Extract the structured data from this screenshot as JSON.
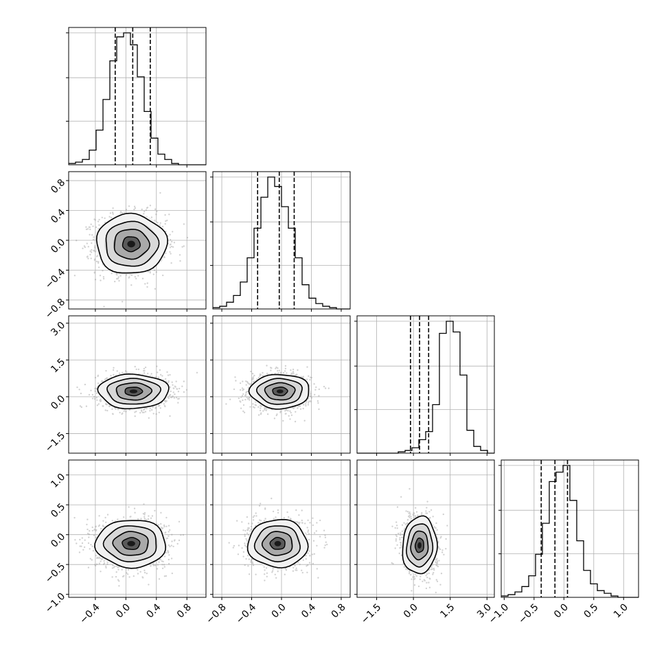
{
  "chart_data": {
    "type": "corner",
    "parameters": 4,
    "grid": true,
    "quantile_lines": "dashed",
    "colors": {
      "line": "#000000",
      "grid": "#b0b0b0",
      "points": "#9a9a9a"
    },
    "axes": [
      {
        "range": [
          -0.75,
          1.05
        ],
        "ticks": [
          -0.4,
          0.0,
          0.4,
          0.8
        ],
        "tick_labels": [
          "−0.4",
          "0.0",
          "0.4",
          "0.8"
        ]
      },
      {
        "range": [
          -0.92,
          0.92
        ],
        "ticks": [
          -0.8,
          -0.4,
          0.0,
          0.4,
          0.8
        ],
        "tick_labels": [
          "−0.8",
          "−0.4",
          "0.0",
          "0.4",
          "0.8"
        ]
      },
      {
        "range": [
          -2.3,
          3.3
        ],
        "ticks": [
          -1.5,
          0.0,
          1.5,
          3.0
        ],
        "tick_labels": [
          "−1.5",
          "0.0",
          "1.5",
          "3.0"
        ]
      },
      {
        "range": [
          -1.05,
          1.25
        ],
        "ticks": [
          -1.0,
          -0.5,
          0.0,
          0.5,
          1.0
        ],
        "tick_labels": [
          "−1.0",
          "−0.5",
          "0.0",
          "0.5",
          "1.0"
        ]
      }
    ],
    "diagonal": [
      {
        "param": 0,
        "bin_edges": [
          -0.75,
          1.05
        ],
        "counts": [
          1,
          2,
          4,
          11,
          26,
          49,
          78,
          96,
          99,
          90,
          66,
          40,
          20,
          8,
          4,
          1,
          0,
          0,
          0,
          0
        ],
        "quantiles": [
          -0.14,
          0.09,
          0.32
        ]
      },
      {
        "param": 1,
        "bin_edges": [
          -0.92,
          0.92
        ],
        "counts": [
          1,
          2,
          5,
          10,
          20,
          38,
          60,
          83,
          98,
          91,
          76,
          60,
          38,
          18,
          8,
          4,
          2,
          1,
          0,
          0
        ],
        "quantiles": [
          -0.32,
          -0.03,
          0.17
        ]
      },
      {
        "param": 2,
        "bin_edges": [
          -2.3,
          3.3
        ],
        "counts": [
          0,
          0,
          0,
          0,
          0,
          0,
          1,
          2,
          4,
          10,
          16,
          36,
          89,
          98,
          90,
          58,
          17,
          5,
          2,
          0
        ],
        "quantiles": [
          -0.12,
          0.25,
          0.62
        ]
      },
      {
        "param": 3,
        "bin_edges": [
          -1.05,
          1.25
        ],
        "counts": [
          1,
          2,
          4,
          8,
          16,
          32,
          55,
          86,
          93,
          98,
          72,
          42,
          20,
          10,
          5,
          3,
          1,
          0,
          0,
          0
        ],
        "quantiles": [
          -0.38,
          -0.15,
          0.06
        ]
      }
    ],
    "pairs": [
      {
        "x_param": 0,
        "y_param": 1,
        "center": [
          0.07,
          -0.05
        ],
        "sigma": [
          0.23,
          0.2
        ],
        "rho": 0
      },
      {
        "x_param": 0,
        "y_param": 2,
        "center": [
          0.1,
          0.22
        ],
        "sigma": [
          0.23,
          0.35
        ],
        "rho": 0
      },
      {
        "x_param": 1,
        "y_param": 2,
        "center": [
          -0.02,
          0.22
        ],
        "sigma": [
          0.2,
          0.35
        ],
        "rho": 0
      },
      {
        "x_param": 0,
        "y_param": 3,
        "center": [
          0.07,
          -0.15
        ],
        "sigma": [
          0.23,
          0.2
        ],
        "rho": 0
      },
      {
        "x_param": 1,
        "y_param": 3,
        "center": [
          -0.05,
          -0.15
        ],
        "sigma": [
          0.2,
          0.2
        ],
        "rho": 0
      },
      {
        "x_param": 2,
        "y_param": 3,
        "center": [
          0.25,
          -0.18
        ],
        "sigma": [
          0.35,
          0.24
        ],
        "rho": -0.1
      }
    ]
  }
}
